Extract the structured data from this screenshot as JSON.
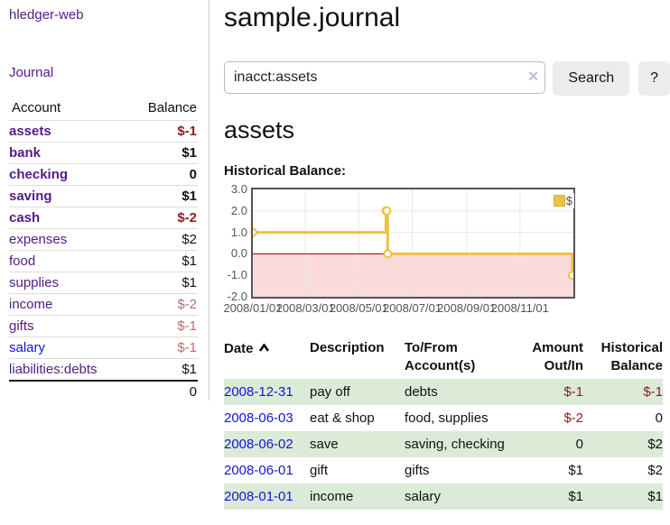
{
  "app": {
    "title": "hledger-web",
    "journal_link": "Journal"
  },
  "sidebar": {
    "header": {
      "account": "Account",
      "balance": "Balance"
    },
    "accounts": [
      {
        "name": "assets",
        "balance": "$-1",
        "level": 0,
        "emph": true,
        "tone": "neg"
      },
      {
        "name": "bank",
        "balance": "$1",
        "level": 1,
        "emph": true
      },
      {
        "name": "checking",
        "balance": "0",
        "level": 2,
        "emph": true
      },
      {
        "name": "saving",
        "balance": "$1",
        "level": 2,
        "emph": true
      },
      {
        "name": "cash",
        "balance": "$-2",
        "level": 1,
        "emph": true,
        "tone": "neg"
      },
      {
        "name": "expenses",
        "balance": "$2",
        "level": 0
      },
      {
        "name": "food",
        "balance": "$1",
        "level": 1
      },
      {
        "name": "supplies",
        "balance": "$1",
        "level": 1
      },
      {
        "name": "income",
        "balance": "$-2",
        "level": 0,
        "tone": "neg-dim"
      },
      {
        "name": "gifts",
        "balance": "$-1",
        "level": 1,
        "tone": "neg-dim"
      },
      {
        "name": "salary",
        "balance": "$-1",
        "level": 1,
        "tone": "neg-dim",
        "link": "blue"
      },
      {
        "name": "liabilities:debts",
        "balance": "$1",
        "level": 0
      }
    ],
    "total": "0"
  },
  "main": {
    "title": "sample.journal",
    "search": {
      "value": "inacct:assets",
      "clear_icon": "×",
      "button_label": "Search",
      "help_label": "?"
    },
    "account_heading": "assets",
    "chart_heading": "Historical Balance:"
  },
  "chart_data": {
    "type": "line",
    "step": true,
    "title": "Historical Balance",
    "x_range": [
      "2008-01-01",
      "2009-01-01"
    ],
    "ylim": [
      -2,
      3
    ],
    "x_ticks": [
      "2008/01/01",
      "2008/03/01",
      "2008/05/01",
      "2008/07/01",
      "2008/09/01",
      "2008/11/01"
    ],
    "y_ticks": [
      "3.0",
      "2.0",
      "1.0",
      "0.0",
      "-1.0",
      "-2.0"
    ],
    "series": [
      {
        "name": "$",
        "color": "#edc240",
        "points": [
          [
            "2008-01-01",
            1
          ],
          [
            "2008-06-01",
            2
          ],
          [
            "2008-06-02",
            2
          ],
          [
            "2008-06-03",
            0
          ],
          [
            "2008-12-31",
            -1
          ]
        ]
      }
    ],
    "legend": "$",
    "legend_position": "top-right",
    "grid": true,
    "colors": {
      "negative_region": "#fbdada",
      "zero_line": "#8b0000",
      "grid": "#e8e8e8",
      "border": "#545454"
    }
  },
  "register": {
    "headers": {
      "date": "Date",
      "description": "Description",
      "tofrom": "To/From Account(s)",
      "amount": "Amount Out/In",
      "balance": "Historical Balance"
    },
    "rows": [
      {
        "date": "2008-12-31",
        "description": "pay off",
        "accounts": "debts",
        "amount": "$-1",
        "balance": "$-1",
        "amount_tone": "neg",
        "balance_tone": "neg",
        "shaded": true
      },
      {
        "date": "2008-06-03",
        "description": "eat & shop",
        "accounts": "food, supplies",
        "amount": "$-2",
        "balance": "0",
        "amount_tone": "neg"
      },
      {
        "date": "2008-06-02",
        "description": "save",
        "accounts": "saving, checking",
        "amount": "0",
        "balance": "$2",
        "shaded": true
      },
      {
        "date": "2008-06-01",
        "description": "gift",
        "accounts": "gifts",
        "amount": "$1",
        "balance": "$2"
      },
      {
        "date": "2008-01-01",
        "description": "income",
        "accounts": "salary",
        "amount": "$1",
        "balance": "$1",
        "shaded": true
      }
    ]
  },
  "colors": {
    "link_visited": "#551a8b",
    "link_unvisited": "#1414d6",
    "negative": "#8b1e1e",
    "negative_soft": "#b66d6d",
    "row_shade": "#dcebd8",
    "series_accent": "#edc240"
  }
}
